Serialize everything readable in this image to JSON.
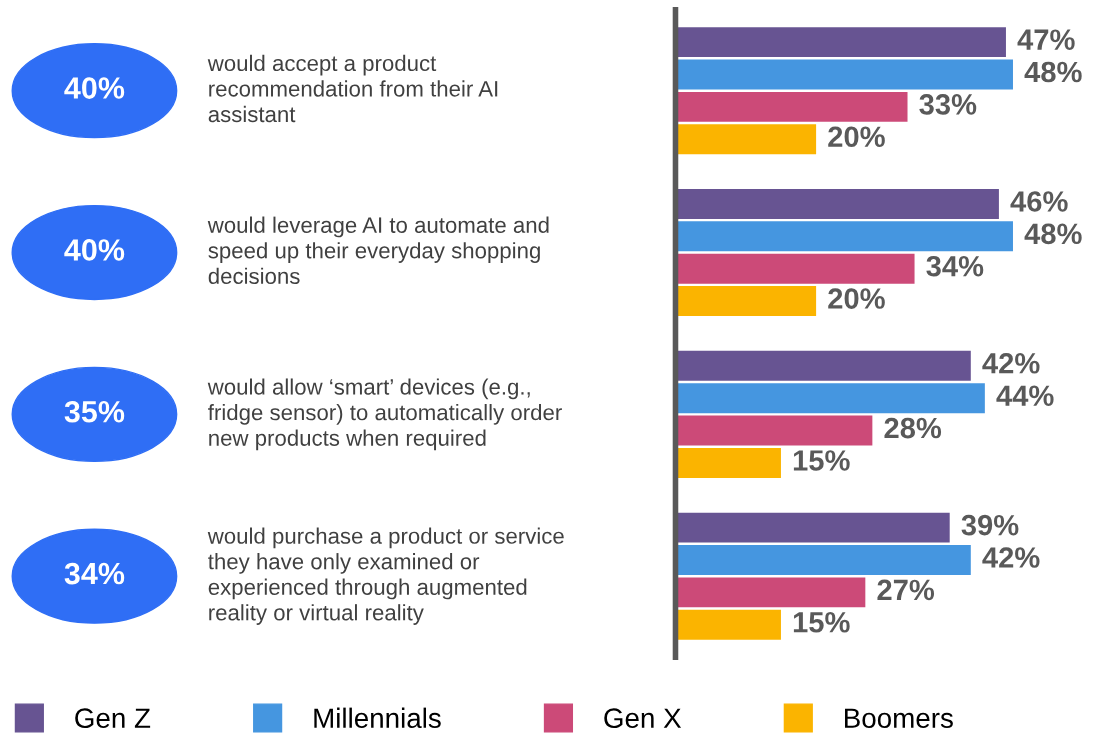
{
  "chart_data": {
    "type": "bar",
    "orientation": "horizontal",
    "categories": [
      "would accept a product\nrecommendation from their AI\nassistant",
      "would leverage AI to automate and\nspeed up their everyday shopping\ndecisions",
      "would allow ‘smart’ devices (e.g.,\nfridge sensor) to automatically order\nnew products when required",
      "would purchase a product or service\nthey have only examined or\nexperienced through augmented\nreality or virtual reality"
    ],
    "series": [
      {
        "name": "Gen Z",
        "color": "#675492",
        "values": [
          47,
          46,
          42,
          39
        ],
        "value_labels": [
          "47%",
          "46%",
          "42%",
          "39%"
        ]
      },
      {
        "name": "Millennials",
        "color": "#4596e0",
        "values": [
          48,
          48,
          44,
          42
        ],
        "value_labels": [
          "48%",
          "48%",
          "44%",
          "42%"
        ]
      },
      {
        "name": "Gen X",
        "color": "#cc4a78",
        "values": [
          33,
          34,
          28,
          27
        ],
        "value_labels": [
          "33%",
          "34%",
          "28%",
          "27%"
        ]
      },
      {
        "name": "Boomers",
        "color": "#fbb400",
        "values": [
          20,
          20,
          15,
          15
        ],
        "value_labels": [
          "20%",
          "20%",
          "15%",
          "15%"
        ]
      }
    ],
    "annotations": [
      "40%",
      "40%",
      "35%",
      "34%"
    ],
    "legend": "bottom"
  }
}
